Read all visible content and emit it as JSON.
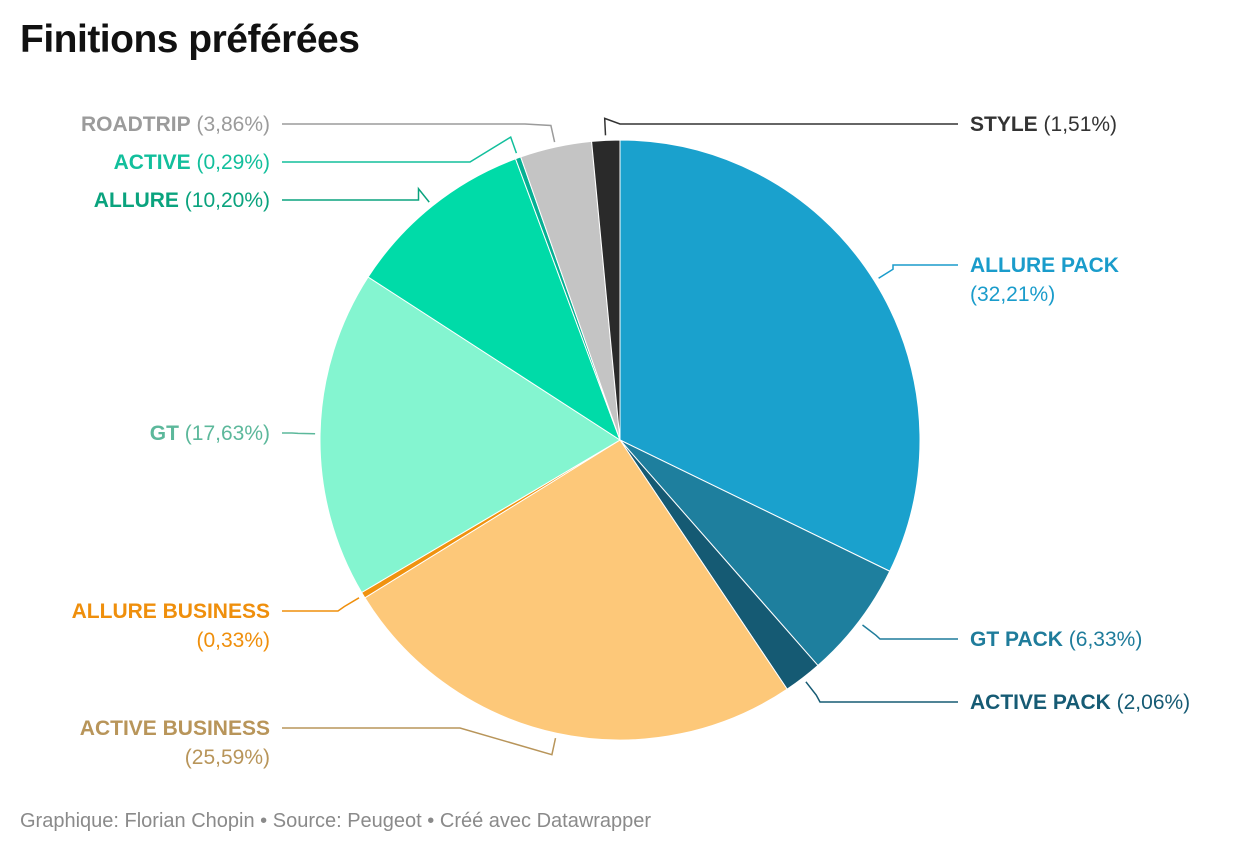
{
  "title": "Finitions préférées",
  "footer": {
    "author": "Graphique: Florian Chopin",
    "source": "Source: Peugeot",
    "tool": "Créé avec Datawrapper",
    "separator": "•"
  },
  "chart_data": {
    "type": "pie",
    "title": "Finitions préférées",
    "slices": [
      {
        "label": "ALLURE PACK",
        "value": 32.21,
        "value_text": "(32,21%)",
        "color": "#1aa1cd"
      },
      {
        "label": "GT PACK",
        "value": 6.33,
        "value_text": "(6,33%)",
        "color": "#1e7f9e"
      },
      {
        "label": "ACTIVE PACK",
        "value": 2.06,
        "value_text": "(2,06%)",
        "color": "#155a73"
      },
      {
        "label": "ACTIVE BUSINESS",
        "value": 25.59,
        "value_text": "(25,59%)",
        "color": "#fdc879"
      },
      {
        "label": "ALLURE BUSINESS",
        "value": 0.33,
        "value_text": "(0,33%)",
        "color": "#f0920f"
      },
      {
        "label": "GT",
        "value": 17.63,
        "value_text": "(17,63%)",
        "color": "#84f5d0"
      },
      {
        "label": "ALLURE",
        "value": 10.2,
        "value_text": "(10,20%)",
        "color": "#00dba8"
      },
      {
        "label": "ACTIVE",
        "value": 0.29,
        "value_text": "(0,29%)",
        "color": "#06b093"
      },
      {
        "label": "ROADTRIP",
        "value": 3.86,
        "value_text": "(3,86%)",
        "color": "#c4c4c4"
      },
      {
        "label": "STYLE",
        "value": 1.51,
        "value_text": "(1,51%)",
        "color": "#2a2a2a"
      }
    ],
    "label_colors": {
      "ALLURE PACK": "#1a9ccb",
      "GT PACK": "#1f7c9b",
      "ACTIVE PACK": "#165b74",
      "ACTIVE BUSINESS": "#b8955a",
      "ALLURE BUSINESS": "#ef8f0c",
      "GT": "#5cb89b",
      "ALLURE": "#0aa37e",
      "ACTIVE": "#12bf9c",
      "ROADTRIP": "#9b9b9b",
      "STYLE": "#333333"
    }
  }
}
